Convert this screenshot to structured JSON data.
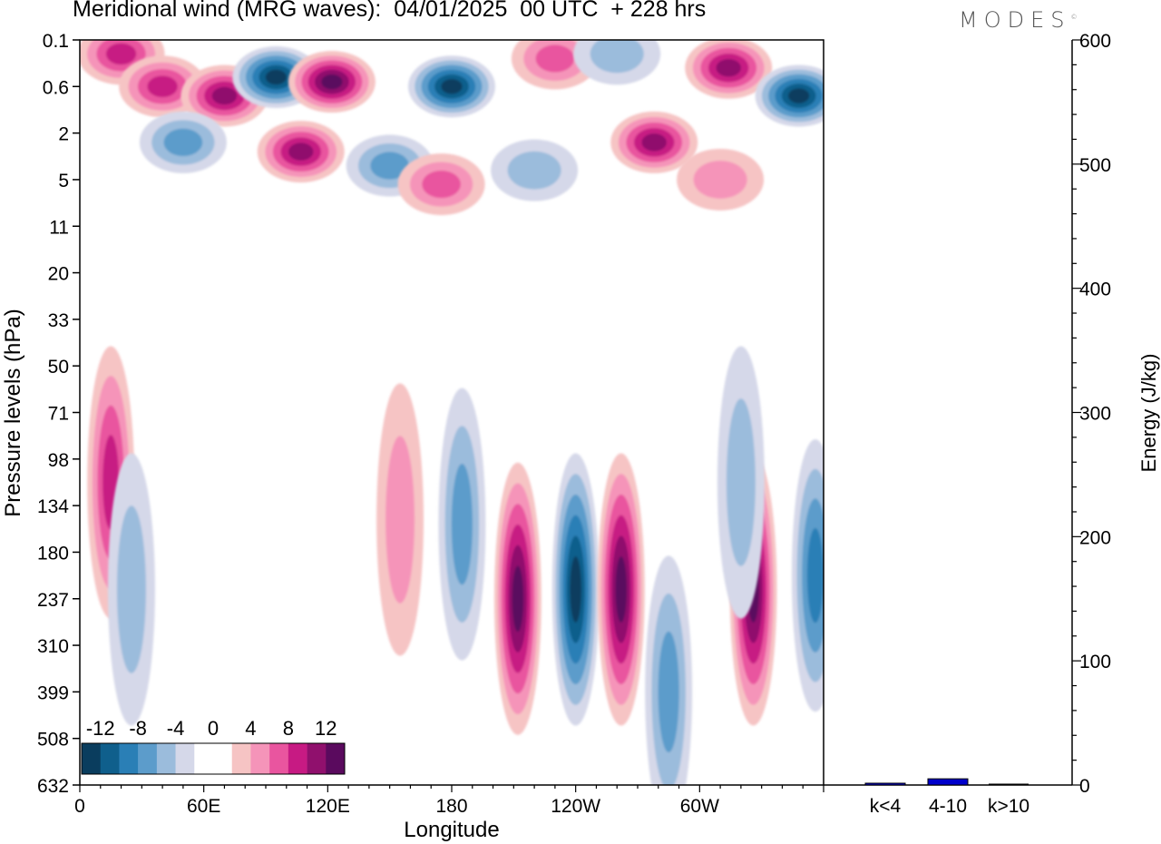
{
  "header": {
    "title": "Meridional wind (MRG waves):  04/01/2025  00 UTC  + 228 hrs",
    "brand": "MODES",
    "brand_mark": "©"
  },
  "chart_data": [
    {
      "type": "heatmap",
      "title": "Meridional wind (MRG waves):  04/01/2025  00 UTC  + 228 hrs",
      "xlabel": "Longitude",
      "ylabel": "Pressure levels (hPa)",
      "x_ticks": [
        {
          "lon": 0,
          "label": "0"
        },
        {
          "lon": 60,
          "label": "60E"
        },
        {
          "lon": 120,
          "label": "120E"
        },
        {
          "lon": 180,
          "label": "180"
        },
        {
          "lon": 240,
          "label": "120W"
        },
        {
          "lon": 300,
          "label": "60W"
        }
      ],
      "xlim": [
        0,
        360
      ],
      "y_levels": [
        "0.1",
        "0.6",
        "2",
        "5",
        "11",
        "20",
        "33",
        "50",
        "71",
        "98",
        "134",
        "180",
        "237",
        "310",
        "399",
        "508",
        "632"
      ],
      "colorbar": {
        "labels": [
          "-12",
          "-8",
          "-4",
          "0",
          "4",
          "8",
          "12"
        ],
        "colors": [
          "#0a3d5e",
          "#0f5f8c",
          "#2a7fb6",
          "#5c9ccb",
          "#9bbcdc",
          "#d5d8e9",
          "#ffffff",
          "#ffffff",
          "#f6c4c4",
          "#f594b9",
          "#e9559f",
          "#c71a83",
          "#90106d",
          "#5a0a5e"
        ]
      },
      "cells": [
        {
          "lon": 20,
          "lev": 0.3,
          "v": 11
        },
        {
          "lon": 40,
          "lev": 1.0,
          "v": 10
        },
        {
          "lon": 70,
          "lev": 1.2,
          "v": 12
        },
        {
          "lon": 95,
          "lev": 0.8,
          "v": -14
        },
        {
          "lon": 122,
          "lev": 0.9,
          "v": 15
        },
        {
          "lon": 180,
          "lev": 1.0,
          "v": -14
        },
        {
          "lon": 230,
          "lev": 0.4,
          "v": 7
        },
        {
          "lon": 260,
          "lev": 0.3,
          "v": -5
        },
        {
          "lon": 278,
          "lev": 2.2,
          "v": 12
        },
        {
          "lon": 314,
          "lev": 0.6,
          "v": 12
        },
        {
          "lon": 348,
          "lev": 1.2,
          "v": -14
        },
        {
          "lon": 50,
          "lev": 2.2,
          "v": -7
        },
        {
          "lon": 107,
          "lev": 2.4,
          "v": 12
        },
        {
          "lon": 150,
          "lev": 2.7,
          "v": -8
        },
        {
          "lon": 175,
          "lev": 3.1,
          "v": 8
        },
        {
          "lon": 220,
          "lev": 2.8,
          "v": -5
        },
        {
          "lon": 310,
          "lev": 3.0,
          "v": 4
        },
        {
          "lon": 15,
          "lev": 9.5,
          "v": 9
        },
        {
          "lon": 155,
          "lev": 10.3,
          "v": 6
        },
        {
          "lon": 185,
          "lev": 10.4,
          "v": -8
        },
        {
          "lon": 25,
          "lev": 11.8,
          "v": -6
        },
        {
          "lon": 212,
          "lev": 12.0,
          "v": 15
        },
        {
          "lon": 240,
          "lev": 11.8,
          "v": -15
        },
        {
          "lon": 262,
          "lev": 11.8,
          "v": 14
        },
        {
          "lon": 285,
          "lev": 14.0,
          "v": -7
        },
        {
          "lon": 326,
          "lev": 11.8,
          "v": 14
        },
        {
          "lon": 356,
          "lev": 11.5,
          "v": -9
        },
        {
          "lon": 320,
          "lev": 9.5,
          "v": -6
        }
      ],
      "energy_bars": {
        "categories": [
          "k<4",
          "4-10",
          "k>10"
        ],
        "values": [
          1,
          5,
          0
        ],
        "ylabel": "Energy (J/kg)",
        "ylim": [
          0,
          600
        ],
        "ticks": [
          "0",
          "100",
          "200",
          "300",
          "400",
          "500",
          "600"
        ],
        "bar_color": "#0000cc"
      }
    }
  ]
}
